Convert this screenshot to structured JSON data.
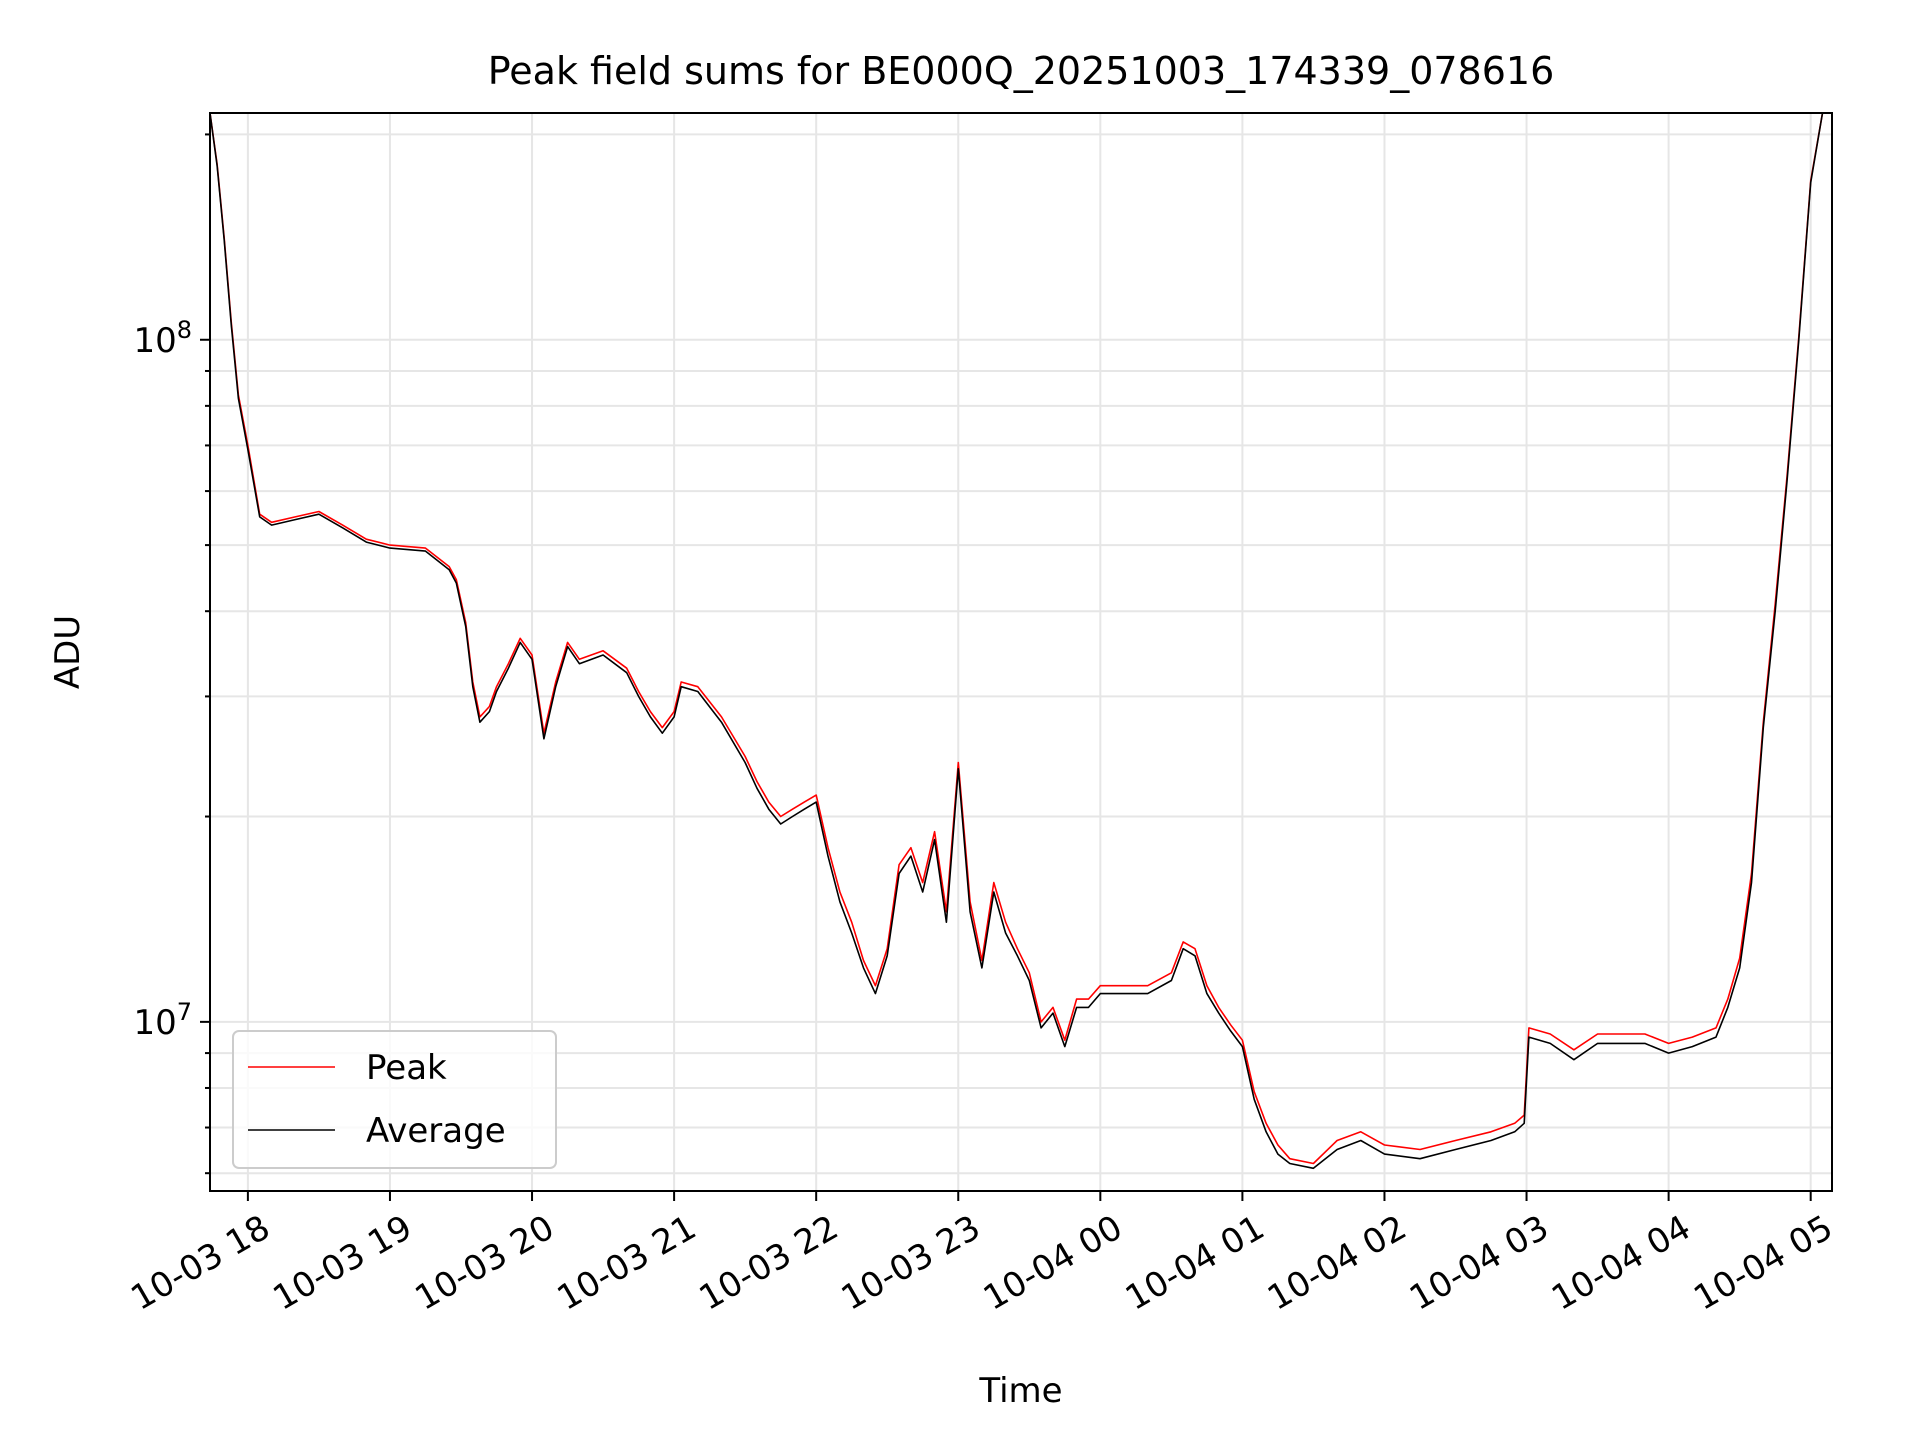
{
  "chart_data": {
    "type": "line",
    "title": "Peak field sums for BE000Q_20251003_174339_078616",
    "xlabel": "Time",
    "ylabel": "ADU",
    "y_scale": "log",
    "ylim": [
      5650000,
      215000000
    ],
    "y_major_ticks": [
      {
        "value": 10000000,
        "base": "10",
        "exp": "7"
      },
      {
        "value": 100000000,
        "base": "10",
        "exp": "8"
      }
    ],
    "x_range": [
      "2025-10-03 17:44",
      "2025-10-04 05:09"
    ],
    "x_tick_values": [
      "2025-10-03 18:00",
      "2025-10-03 19:00",
      "2025-10-03 20:00",
      "2025-10-03 21:00",
      "2025-10-03 22:00",
      "2025-10-03 23:00",
      "2025-10-04 00:00",
      "2025-10-04 01:00",
      "2025-10-04 02:00",
      "2025-10-04 03:00",
      "2025-10-04 04:00",
      "2025-10-04 05:00"
    ],
    "x_tick_labels": [
      "10-03 18",
      "10-03 19",
      "10-03 20",
      "10-03 21",
      "10-03 22",
      "10-03 23",
      "10-04 00",
      "10-04 01",
      "10-04 02",
      "10-04 03",
      "10-04 04",
      "10-04 05"
    ],
    "grid": true,
    "legend_position": "lower-left",
    "series": [
      {
        "name": "Peak",
        "color": "#ff0000"
      },
      {
        "name": "Average",
        "color": "#000000"
      }
    ],
    "x": [
      "2025-10-03 17:44",
      "2025-10-03 17:47",
      "2025-10-03 17:50",
      "2025-10-03 17:53",
      "2025-10-03 17:56",
      "2025-10-03 18:00",
      "2025-10-03 18:05",
      "2025-10-03 18:10",
      "2025-10-03 18:20",
      "2025-10-03 18:30",
      "2025-10-03 18:40",
      "2025-10-03 18:50",
      "2025-10-03 19:00",
      "2025-10-03 19:15",
      "2025-10-03 19:25",
      "2025-10-03 19:28",
      "2025-10-03 19:32",
      "2025-10-03 19:35",
      "2025-10-03 19:38",
      "2025-10-03 19:42",
      "2025-10-03 19:45",
      "2025-10-03 19:50",
      "2025-10-03 19:55",
      "2025-10-03 20:00",
      "2025-10-03 20:05",
      "2025-10-03 20:10",
      "2025-10-03 20:15",
      "2025-10-03 20:20",
      "2025-10-03 20:30",
      "2025-10-03 20:40",
      "2025-10-03 20:45",
      "2025-10-03 20:50",
      "2025-10-03 20:55",
      "2025-10-03 21:00",
      "2025-10-03 21:03",
      "2025-10-03 21:10",
      "2025-10-03 21:20",
      "2025-10-03 21:30",
      "2025-10-03 21:35",
      "2025-10-03 21:40",
      "2025-10-03 21:45",
      "2025-10-03 21:50",
      "2025-10-03 21:55",
      "2025-10-03 22:00",
      "2025-10-03 22:05",
      "2025-10-03 22:10",
      "2025-10-03 22:15",
      "2025-10-03 22:20",
      "2025-10-03 22:25",
      "2025-10-03 22:30",
      "2025-10-03 22:35",
      "2025-10-03 22:40",
      "2025-10-03 22:45",
      "2025-10-03 22:50",
      "2025-10-03 22:55",
      "2025-10-03 23:00",
      "2025-10-03 23:05",
      "2025-10-03 23:10",
      "2025-10-03 23:15",
      "2025-10-03 23:20",
      "2025-10-03 23:25",
      "2025-10-03 23:30",
      "2025-10-03 23:35",
      "2025-10-03 23:40",
      "2025-10-03 23:45",
      "2025-10-03 23:50",
      "2025-10-03 23:55",
      "2025-10-04 00:00",
      "2025-10-04 00:10",
      "2025-10-04 00:20",
      "2025-10-04 00:30",
      "2025-10-04 00:35",
      "2025-10-04 00:40",
      "2025-10-04 00:45",
      "2025-10-04 00:50",
      "2025-10-04 00:55",
      "2025-10-04 01:00",
      "2025-10-04 01:05",
      "2025-10-04 01:10",
      "2025-10-04 01:15",
      "2025-10-04 01:20",
      "2025-10-04 01:30",
      "2025-10-04 01:40",
      "2025-10-04 01:50",
      "2025-10-04 02:00",
      "2025-10-04 02:15",
      "2025-10-04 02:30",
      "2025-10-04 02:45",
      "2025-10-04 02:55",
      "2025-10-04 02:59",
      "2025-10-04 03:01",
      "2025-10-04 03:10",
      "2025-10-04 03:20",
      "2025-10-04 03:30",
      "2025-10-04 03:40",
      "2025-10-04 03:50",
      "2025-10-04 04:00",
      "2025-10-04 04:10",
      "2025-10-04 04:20",
      "2025-10-04 04:25",
      "2025-10-04 04:30",
      "2025-10-04 04:35",
      "2025-10-04 04:40",
      "2025-10-04 04:45",
      "2025-10-04 04:50",
      "2025-10-04 04:55",
      "2025-10-04 05:00",
      "2025-10-04 05:05",
      "2025-10-04 05:08"
    ],
    "average": [
      215000000,
      180000000,
      140000000,
      105000000,
      82000000,
      69000000,
      55000000,
      53500000,
      54500000,
      55500000,
      53000000,
      50500000,
      49500000,
      49000000,
      46000000,
      44000000,
      38000000,
      31000000,
      27500000,
      28500000,
      30500000,
      33000000,
      36000000,
      34000000,
      26000000,
      31000000,
      35500000,
      33500000,
      34500000,
      32500000,
      30000000,
      28000000,
      26500000,
      28000000,
      31000000,
      30500000,
      27500000,
      24000000,
      22000000,
      20500000,
      19500000,
      20000000,
      20500000,
      21000000,
      17500000,
      15000000,
      13500000,
      12000000,
      11000000,
      12500000,
      16500000,
      17500000,
      15500000,
      18500000,
      14000000,
      23500000,
      14500000,
      12000000,
      15500000,
      13500000,
      12500000,
      11500000,
      9800000,
      10300000,
      9200000,
      10500000,
      10500000,
      11000000,
      11000000,
      11000000,
      11500000,
      12800000,
      12500000,
      11000000,
      10300000,
      9700000,
      9200000,
      7700000,
      6900000,
      6400000,
      6200000,
      6100000,
      6500000,
      6700000,
      6400000,
      6300000,
      6500000,
      6700000,
      6900000,
      7100000,
      9500000,
      9300000,
      8800000,
      9300000,
      9300000,
      9300000,
      9000000,
      9200000,
      9500000,
      10500000,
      12000000,
      16000000,
      27000000,
      40000000,
      62000000,
      100000000,
      170000000,
      215000000
    ],
    "peak": [
      215000000,
      181000000,
      141000000,
      106000000,
      83000000,
      70000000,
      55500000,
      54000000,
      55000000,
      56000000,
      53500000,
      51000000,
      50000000,
      49500000,
      46500000,
      44500000,
      38500000,
      31500000,
      28000000,
      29000000,
      31000000,
      33500000,
      36500000,
      34500000,
      26500000,
      31500000,
      36000000,
      34000000,
      35000000,
      33000000,
      30500000,
      28500000,
      27000000,
      28500000,
      31500000,
      31000000,
      28000000,
      24500000,
      22500000,
      21000000,
      20000000,
      20500000,
      21000000,
      21500000,
      18000000,
      15500000,
      14000000,
      12300000,
      11300000,
      12800000,
      17000000,
      18000000,
      16000000,
      19000000,
      14500000,
      24000000,
      15000000,
      12300000,
      16000000,
      14000000,
      12800000,
      11800000,
      10000000,
      10500000,
      9400000,
      10800000,
      10800000,
      11300000,
      11300000,
      11300000,
      11800000,
      13100000,
      12800000,
      11300000,
      10500000,
      9900000,
      9400000,
      7900000,
      7100000,
      6600000,
      6300000,
      6200000,
      6700000,
      6900000,
      6600000,
      6500000,
      6700000,
      6900000,
      7100000,
      7300000,
      9800000,
      9600000,
      9100000,
      9600000,
      9600000,
      9600000,
      9300000,
      9500000,
      9800000,
      10800000,
      12400000,
      16500000,
      27500000,
      41000000,
      63000000,
      101000000,
      171000000,
      215000000
    ]
  }
}
